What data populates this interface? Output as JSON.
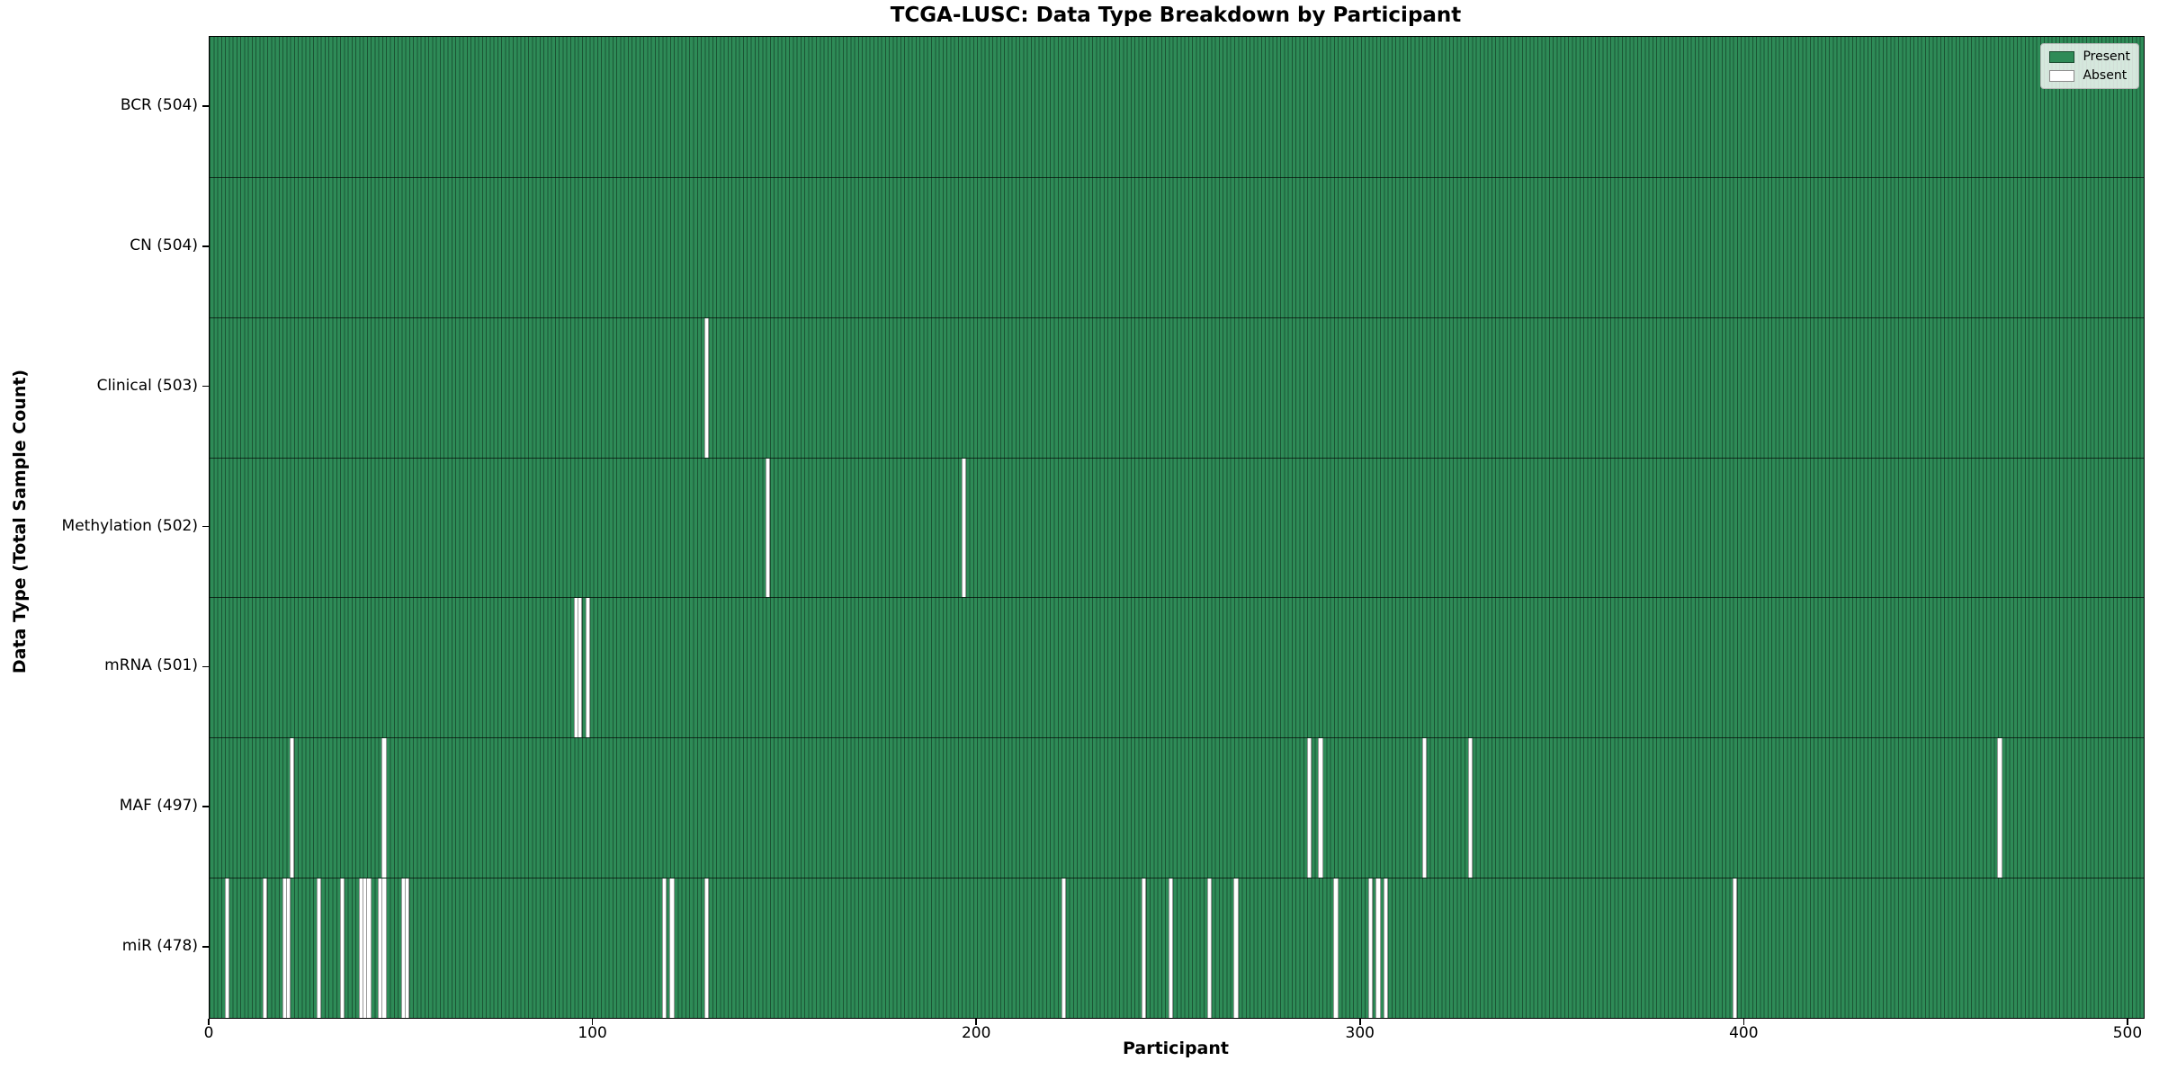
{
  "title": "TCGA-LUSC: Data Type Breakdown by Participant",
  "xlabel": "Participant",
  "ylabel": "Data Type (Total Sample Count)",
  "legend": {
    "present_label": "Present",
    "absent_label": "Absent",
    "position": "upper right"
  },
  "colors": {
    "present": "#2e8b57",
    "absent": "#ffffff",
    "bar_edge": "#1b5434",
    "row_boundary": "#000000",
    "axis": "#000000"
  },
  "chart_data": {
    "type": "heatmap",
    "x_axis": {
      "label": "Participant",
      "ticks": [
        0,
        100,
        200,
        300,
        400,
        500
      ],
      "range": [
        0,
        504
      ]
    },
    "y_axis": {
      "label": "Data Type (Total Sample Count)"
    },
    "n_participants": 504,
    "legend_entries": [
      "Present",
      "Absent"
    ],
    "grid": false,
    "rows": [
      {
        "name": "BCR",
        "label": "BCR (504)",
        "total": 504,
        "absent_participants": []
      },
      {
        "name": "CN",
        "label": "CN (504)",
        "total": 504,
        "absent_participants": []
      },
      {
        "name": "Clinical",
        "label": "Clinical (503)",
        "total": 503,
        "absent_participants": [
          129
        ]
      },
      {
        "name": "Methylation",
        "label": "Methylation (502)",
        "total": 502,
        "absent_participants": [
          145,
          196
        ]
      },
      {
        "name": "mRNA",
        "label": "mRNA (501)",
        "total": 501,
        "absent_participants": [
          95,
          96,
          98
        ]
      },
      {
        "name": "MAF",
        "label": "MAF (497)",
        "total": 497,
        "absent_participants": [
          21,
          45,
          286,
          289,
          316,
          328,
          466
        ]
      },
      {
        "name": "miR",
        "label": "miR (478)",
        "total": 478,
        "absent_participants": [
          4,
          14,
          19,
          20,
          28,
          34,
          39,
          40,
          41,
          44,
          45,
          50,
          51,
          118,
          120,
          129,
          222,
          243,
          250,
          260,
          267,
          293,
          302,
          304,
          306,
          397
        ]
      }
    ]
  }
}
